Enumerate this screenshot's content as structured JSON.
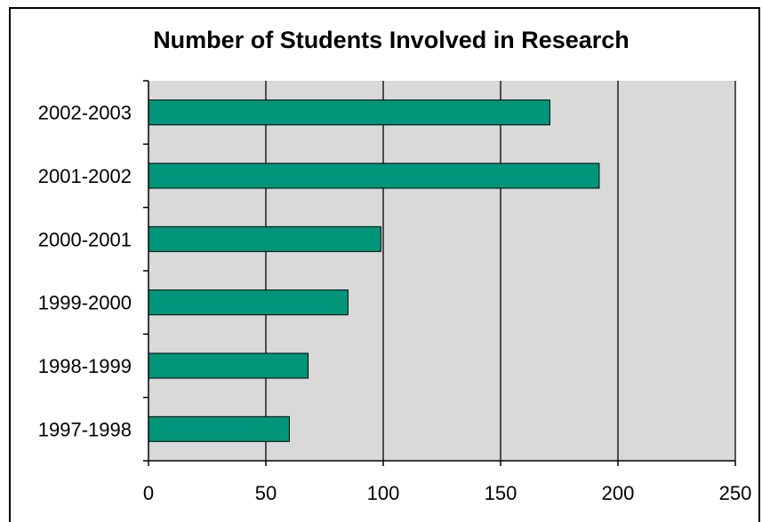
{
  "colors": {
    "bar": "#00967a",
    "plot_bg": "#d9d9d9",
    "grid": "#000000"
  },
  "chart_data": {
    "type": "bar",
    "orientation": "horizontal",
    "title": "Number of Students Involved in Research",
    "categories": [
      "2002-2003",
      "2001-2002",
      "2000-2001",
      "1999-2000",
      "1998-1999",
      "1997-1998"
    ],
    "values": [
      171,
      192,
      99,
      85,
      68,
      60
    ],
    "xlim": [
      0,
      250
    ],
    "xticks": [
      0,
      50,
      100,
      150,
      200,
      250
    ],
    "grid": true
  }
}
